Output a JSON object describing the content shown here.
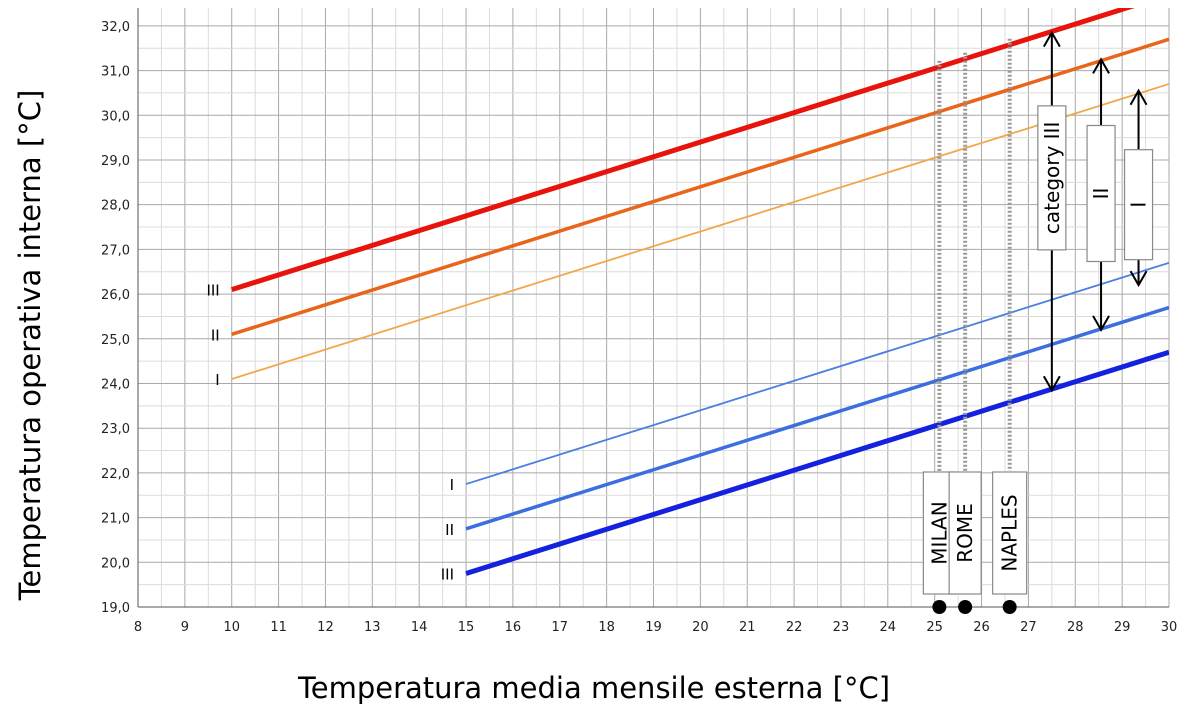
{
  "chart_data": {
    "type": "line",
    "xlabel": "Temperatura media mensile esterna [°C]",
    "ylabel": "Temperatura operativa interna [°C]",
    "xlim": [
      8,
      30
    ],
    "ylim": [
      19,
      32.4
    ],
    "x_ticks": [
      "8",
      "9",
      "10",
      "11",
      "12",
      "13",
      "14",
      "15",
      "16",
      "17",
      "18",
      "19",
      "20",
      "21",
      "22",
      "23",
      "24",
      "25",
      "26",
      "27",
      "28",
      "29",
      "30"
    ],
    "y_ticks": [
      "19,0",
      "20,0",
      "21,0",
      "22,0",
      "23,0",
      "24,0",
      "25,0",
      "26,0",
      "27,0",
      "28,0",
      "29,0",
      "30,0",
      "31,0",
      "32,0"
    ],
    "grid": true,
    "series": [
      {
        "name": "III",
        "group": "upper",
        "color": "#e8140c",
        "x": [
          10,
          30
        ],
        "y": [
          26.1,
          32.7
        ]
      },
      {
        "name": "II",
        "group": "upper",
        "color": "#e8651a",
        "x": [
          10,
          30
        ],
        "y": [
          25.1,
          31.7
        ]
      },
      {
        "name": "I",
        "group": "upper",
        "color": "#f0a84a",
        "x": [
          10,
          30
        ],
        "y": [
          24.1,
          30.7
        ]
      },
      {
        "name": "I",
        "group": "lower",
        "color": "#4a7ee0",
        "x": [
          15,
          30
        ],
        "y": [
          21.75,
          26.7
        ]
      },
      {
        "name": "II",
        "group": "lower",
        "color": "#3c6ee0",
        "x": [
          15,
          30
        ],
        "y": [
          20.75,
          25.7
        ]
      },
      {
        "name": "III",
        "group": "lower",
        "color": "#1422e0",
        "x": [
          15,
          30
        ],
        "y": [
          19.75,
          24.7
        ]
      }
    ],
    "cities": [
      {
        "name": "MILAN",
        "x": 25.1
      },
      {
        "name": "ROME",
        "x": 25.65
      },
      {
        "name": "NAPLES",
        "x": 26.6
      }
    ],
    "category_ranges": [
      {
        "label": "category III",
        "x": 27.5,
        "y_range": [
          23.85,
          31.85
        ]
      },
      {
        "label": "II",
        "x": 28.55,
        "y_range": [
          25.2,
          31.25
        ]
      },
      {
        "label": "I",
        "x": 29.35,
        "y_range": [
          26.2,
          30.55
        ]
      }
    ]
  }
}
